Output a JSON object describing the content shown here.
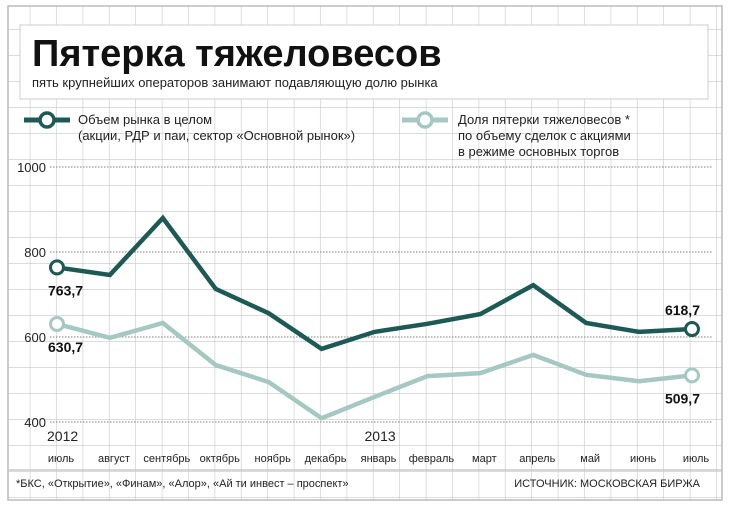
{
  "title": "Пятерка тяжеловесов",
  "subtitle": "пять крупнейших операторов занимают подавляющую долю рынка",
  "colors": {
    "series1": "#1e5a55",
    "series2": "#a6c8c3",
    "grid": "#c8c8c8",
    "dots": "#999999"
  },
  "footnote": "*БКС, «Открытие», «Финам», «Алор», «Ай ти инвест – проспект»",
  "source": "ИСТОЧНИК: МОСКОВСКАЯ БИРЖА",
  "chart_data": {
    "type": "line",
    "title": "Пятерка тяжеловесов",
    "ylim": [
      400,
      1000
    ],
    "yticks": [
      "1000",
      "800",
      "600",
      "400"
    ],
    "ytick_values": [
      1000,
      800,
      600,
      400
    ],
    "years": [
      {
        "label": "2012",
        "index": 0
      },
      {
        "label": "2013",
        "index": 6
      }
    ],
    "categories": [
      "июль",
      "август",
      "сентябрь",
      "октябрь",
      "ноябрь",
      "декабрь",
      "январь",
      "февраль",
      "март",
      "апрель",
      "май",
      "июнь",
      "июль"
    ],
    "grid": true,
    "legend_position": "top",
    "series": [
      {
        "name": "Объем рынка в целом",
        "name_line2": "(акции, РДР и паи, сектор «Основной рынок»)",
        "values": [
          763.7,
          746,
          880,
          713,
          656,
          572,
          612,
          631,
          654,
          722,
          633,
          612,
          618.7
        ],
        "start_label": "763,7",
        "end_label": "618,7"
      },
      {
        "name": "Доля пятерки тяжеловесов *",
        "name_line2": "по объему сделок с акциями",
        "name_line3": "в режиме основных торгов",
        "values": [
          630.7,
          598,
          633,
          534,
          494,
          409,
          459,
          508,
          515,
          558,
          511,
          496,
          509.7
        ],
        "start_label": "630,7",
        "end_label": "509,7"
      }
    ]
  }
}
